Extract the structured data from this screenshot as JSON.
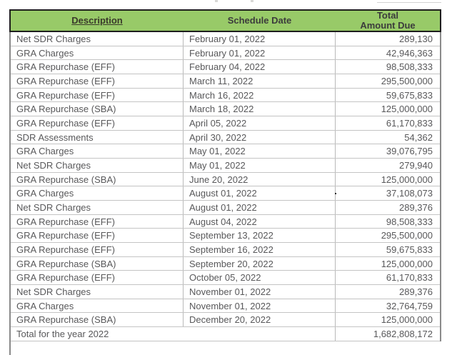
{
  "table": {
    "columns": [
      {
        "label": "Description",
        "sortable": true
      },
      {
        "label": "Schedule Date"
      },
      {
        "label_line1": "Total",
        "label_line2": "Amount Due"
      }
    ],
    "rows": [
      {
        "description": "Net SDR Charges",
        "date": "February 01, 2022",
        "amount": "289,130"
      },
      {
        "description": "GRA Charges",
        "date": "February 01, 2022",
        "amount": "42,946,363"
      },
      {
        "description": "GRA Repurchase (EFF)",
        "date": "February 04, 2022",
        "amount": "98,508,333"
      },
      {
        "description": "GRA Repurchase (EFF)",
        "date": "March 11, 2022",
        "amount": "295,500,000"
      },
      {
        "description": "GRA Repurchase (EFF)",
        "date": "March 16, 2022",
        "amount": "59,675,833"
      },
      {
        "description": "GRA Repurchase (SBA)",
        "date": "March 18, 2022",
        "amount": "125,000,000"
      },
      {
        "description": "GRA Repurchase (EFF)",
        "date": "April 05, 2022",
        "amount": "61,170,833"
      },
      {
        "description": "SDR Assessments",
        "date": "April 30, 2022",
        "amount": "54,362"
      },
      {
        "description": "GRA Charges",
        "date": "May 01, 2022",
        "amount": "39,076,795"
      },
      {
        "description": "Net SDR Charges",
        "date": "May 01, 2022",
        "amount": "279,940"
      },
      {
        "description": "GRA Repurchase (SBA)",
        "date": "June 20, 2022",
        "amount": "125,000,000"
      },
      {
        "description": "GRA Charges",
        "date": "August 01, 2022",
        "amount": "37,108,073",
        "stray_dot": true
      },
      {
        "description": "Net SDR Charges",
        "date": "August 01, 2022",
        "amount": "289,376"
      },
      {
        "description": "GRA Repurchase (EFF)",
        "date": "August 04, 2022",
        "amount": "98,508,333"
      },
      {
        "description": "GRA Repurchase (EFF)",
        "date": "September 13, 2022",
        "amount": "295,500,000"
      },
      {
        "description": "GRA Repurchase (EFF)",
        "date": "September 16, 2022",
        "amount": "59,675,833"
      },
      {
        "description": "GRA Repurchase (SBA)",
        "date": "September 20, 2022",
        "amount": "125,000,000"
      },
      {
        "description": "GRA Repurchase (EFF)",
        "date": "October 05, 2022",
        "amount": "61,170,833"
      },
      {
        "description": "Net SDR Charges",
        "date": "November 01, 2022",
        "amount": "289,376"
      },
      {
        "description": "GRA Charges",
        "date": "November 01, 2022",
        "amount": "32,764,759"
      },
      {
        "description": "GRA Repurchase (SBA)",
        "date": "December 20, 2022",
        "amount": "125,000,000"
      }
    ],
    "total_row": {
      "label": "Total for the year 2022",
      "amount": "1,682,808,172"
    },
    "colors": {
      "header_bg": "#98ca68",
      "header_border": "#1e1e1e",
      "grid_line": "#c4c4c4",
      "outer_border": "#8a8a8a",
      "body_text": "#58585a",
      "header_text": "#3c3c3c",
      "description_link_text": "#3a3a2b"
    }
  }
}
